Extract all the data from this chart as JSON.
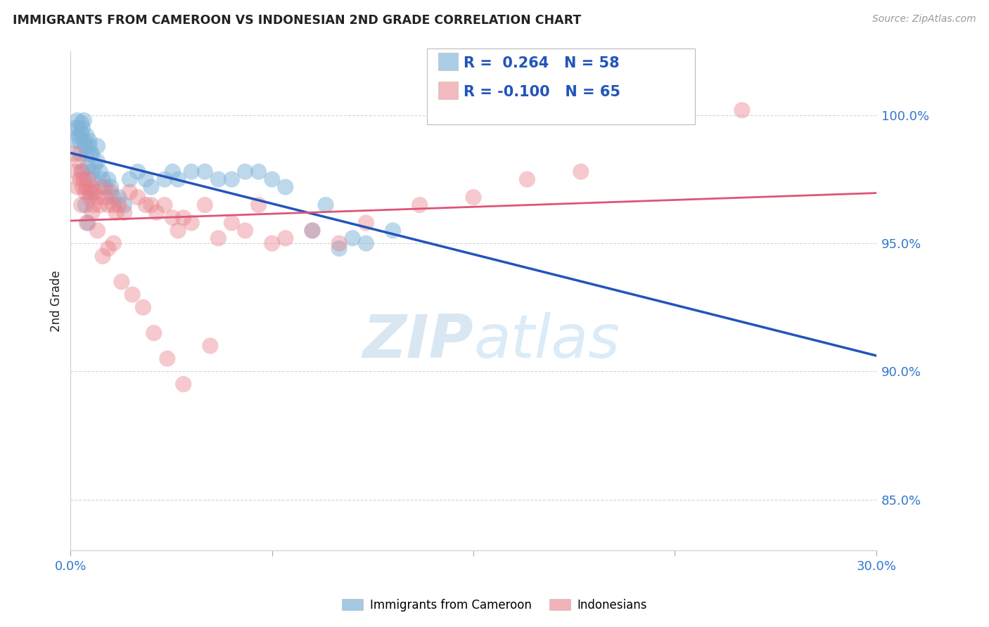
{
  "title": "IMMIGRANTS FROM CAMEROON VS INDONESIAN 2ND GRADE CORRELATION CHART",
  "source": "Source: ZipAtlas.com",
  "ylabel": "2nd Grade",
  "xlim": [
    0.0,
    30.0
  ],
  "ylim": [
    83.0,
    102.5
  ],
  "yticks": [
    85.0,
    90.0,
    95.0,
    100.0
  ],
  "ytick_labels": [
    "85.0%",
    "90.0%",
    "95.0%",
    "100.0%"
  ],
  "xtick_positions": [
    0.0,
    7.5,
    15.0,
    22.5,
    30.0
  ],
  "xtick_labels": [
    "0.0%",
    "",
    "",
    "",
    "30.0%"
  ],
  "r_blue": 0.264,
  "n_blue": 58,
  "r_pink": -0.1,
  "n_pink": 65,
  "blue_color": "#7fb3d8",
  "pink_color": "#e8808a",
  "blue_line_color": "#2255bb",
  "pink_line_color": "#dd5577",
  "title_color": "#222222",
  "tick_color": "#3377cc",
  "watermark_color": "#ddeef8",
  "background_color": "#ffffff",
  "grid_color": "#cccccc",
  "blue_x": [
    0.15,
    0.2,
    0.25,
    0.3,
    0.3,
    0.35,
    0.4,
    0.4,
    0.45,
    0.5,
    0.5,
    0.55,
    0.6,
    0.6,
    0.65,
    0.7,
    0.7,
    0.75,
    0.8,
    0.8,
    0.85,
    0.9,
    1.0,
    1.0,
    1.1,
    1.2,
    1.3,
    1.4,
    1.5,
    1.6,
    1.8,
    2.0,
    2.2,
    2.5,
    2.8,
    3.0,
    3.5,
    3.8,
    4.0,
    4.5,
    5.0,
    5.5,
    6.0,
    6.5,
    7.0,
    7.5,
    8.0,
    9.0,
    9.5,
    10.0,
    10.5,
    11.0,
    12.0,
    0.35,
    0.45,
    0.55,
    0.65,
    0.75
  ],
  "blue_y": [
    99.5,
    99.0,
    99.8,
    99.5,
    99.2,
    99.0,
    99.3,
    99.7,
    99.5,
    99.0,
    99.8,
    98.8,
    98.5,
    99.2,
    98.0,
    98.8,
    99.0,
    98.5,
    97.8,
    98.5,
    97.5,
    98.0,
    98.2,
    98.8,
    97.8,
    97.5,
    97.2,
    97.5,
    97.2,
    96.8,
    96.8,
    96.5,
    97.5,
    97.8,
    97.5,
    97.2,
    97.5,
    97.8,
    97.5,
    97.8,
    97.8,
    97.5,
    97.5,
    97.8,
    97.8,
    97.5,
    97.2,
    95.5,
    96.5,
    94.8,
    95.2,
    95.0,
    95.5,
    98.5,
    97.8,
    96.5,
    95.8,
    97.0
  ],
  "pink_x": [
    0.15,
    0.2,
    0.3,
    0.35,
    0.4,
    0.45,
    0.5,
    0.55,
    0.6,
    0.65,
    0.7,
    0.75,
    0.8,
    0.85,
    0.9,
    1.0,
    1.1,
    1.2,
    1.3,
    1.4,
    1.5,
    1.6,
    1.7,
    1.8,
    2.0,
    2.2,
    2.5,
    2.8,
    3.0,
    3.2,
    3.5,
    3.8,
    4.0,
    4.2,
    4.5,
    5.0,
    5.5,
    6.0,
    6.5,
    7.0,
    7.5,
    8.0,
    9.0,
    10.0,
    11.0,
    13.0,
    15.0,
    17.0,
    19.0,
    25.0,
    0.25,
    0.4,
    0.6,
    0.8,
    1.0,
    1.2,
    1.4,
    1.6,
    1.9,
    2.3,
    2.7,
    3.1,
    3.6,
    4.2,
    5.2
  ],
  "pink_y": [
    98.5,
    97.8,
    98.2,
    97.5,
    97.8,
    97.2,
    97.5,
    97.0,
    97.2,
    97.5,
    96.8,
    97.0,
    97.2,
    96.5,
    97.0,
    96.8,
    96.5,
    97.2,
    96.8,
    96.5,
    97.0,
    96.5,
    96.2,
    96.5,
    96.2,
    97.0,
    96.8,
    96.5,
    96.5,
    96.2,
    96.5,
    96.0,
    95.5,
    96.0,
    95.8,
    96.5,
    95.2,
    95.8,
    95.5,
    96.5,
    95.0,
    95.2,
    95.5,
    95.0,
    95.8,
    96.5,
    96.8,
    97.5,
    97.8,
    100.2,
    97.2,
    96.5,
    95.8,
    96.2,
    95.5,
    94.5,
    94.8,
    95.0,
    93.5,
    93.0,
    92.5,
    91.5,
    90.5,
    89.5,
    91.0
  ]
}
